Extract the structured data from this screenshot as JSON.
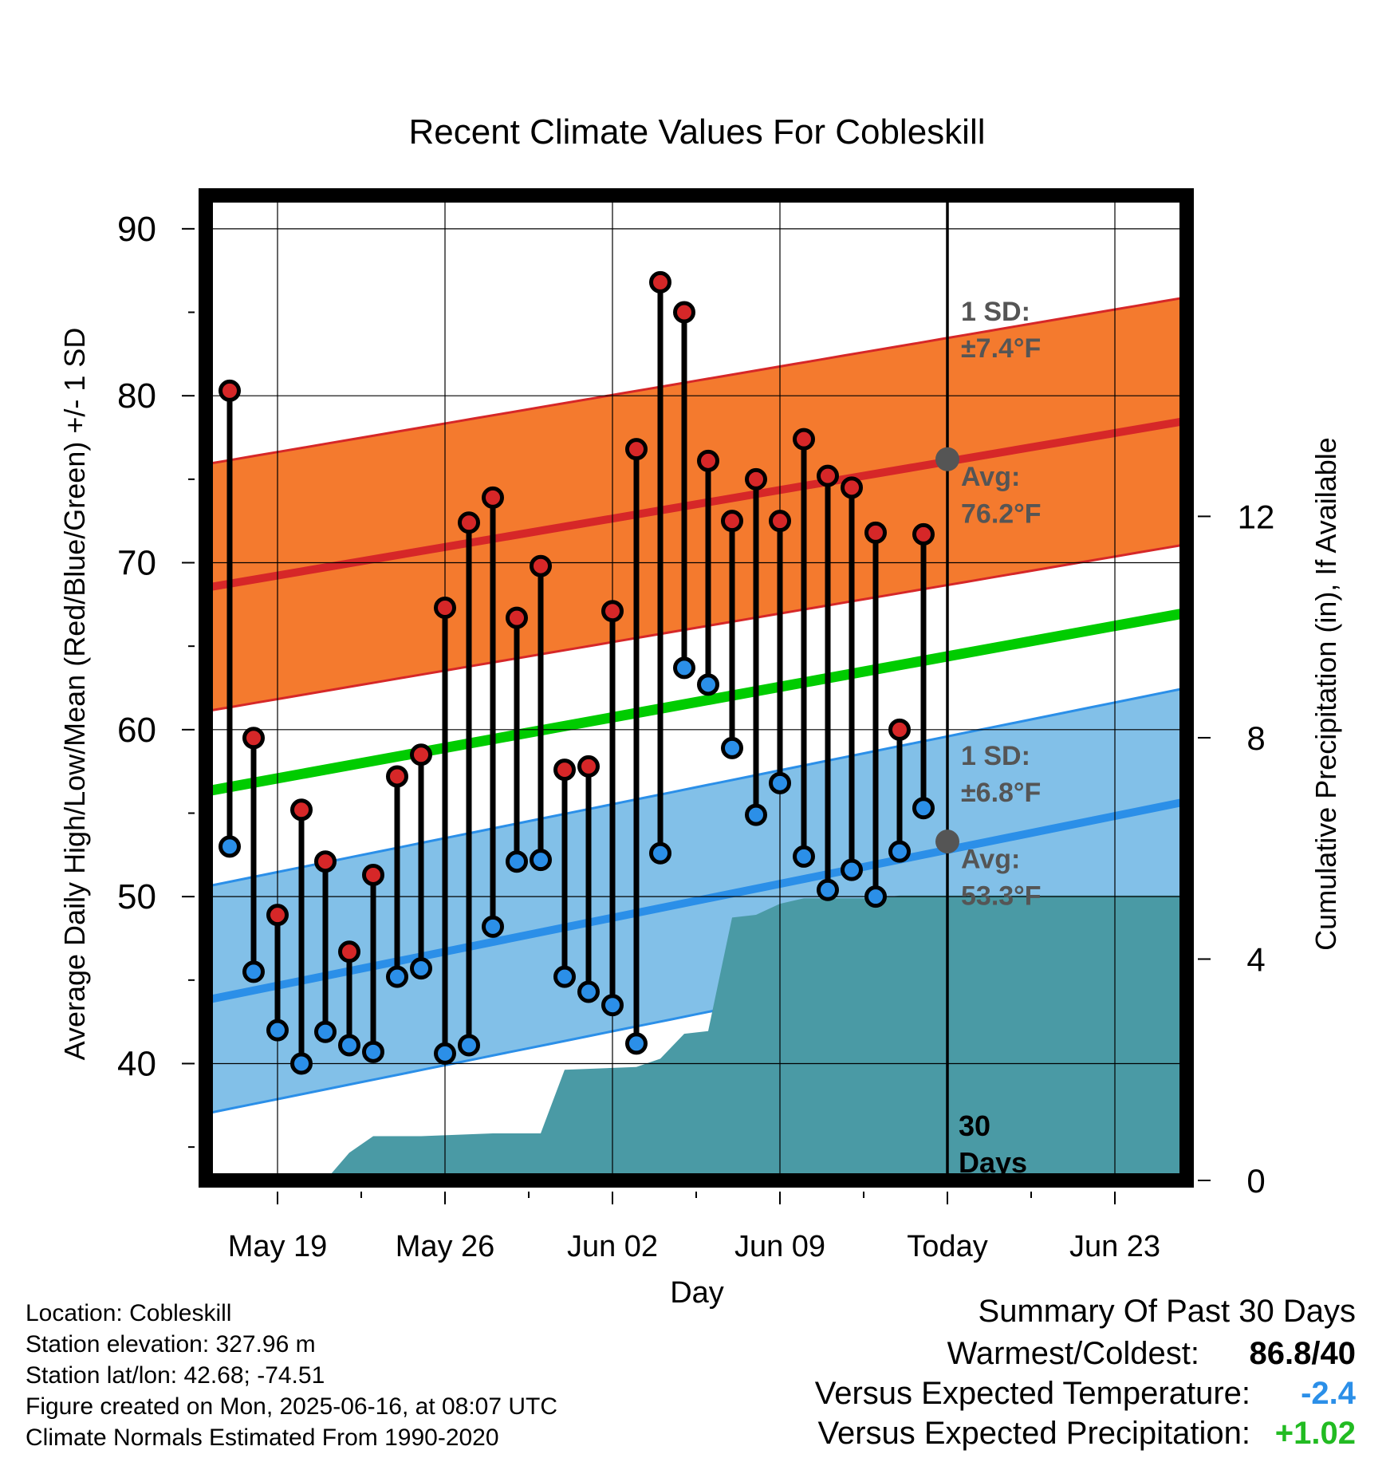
{
  "chart_data": {
    "type": "line",
    "title": "Recent Climate Values For Cobleskill",
    "xlabel": "Day",
    "ylabel": "Average Daily High/Low/Mean (Red/Blue/Green) +/- 1 SD",
    "y2label": "Cumulative Precipitation (in), If Available",
    "x_tick_labels": [
      "May 19",
      "May 26",
      "Jun 02",
      "Jun 09",
      "Today",
      "Jun 23"
    ],
    "x_tick_dates": [
      "2025-05-19",
      "2025-05-26",
      "2025-06-02",
      "2025-06-09",
      "2025-06-16",
      "2025-06-23"
    ],
    "xlim": [
      "2025-05-16",
      "2025-06-26"
    ],
    "today": "2025-06-16",
    "ylim": [
      33,
      92
    ],
    "y_ticks": [
      40,
      50,
      60,
      70,
      80,
      90
    ],
    "y2lim": [
      0,
      17.8
    ],
    "y2_ticks": [
      0,
      4,
      8,
      12
    ],
    "dates": [
      "2025-05-17",
      "2025-05-18",
      "2025-05-19",
      "2025-05-20",
      "2025-05-21",
      "2025-05-22",
      "2025-05-23",
      "2025-05-24",
      "2025-05-25",
      "2025-05-26",
      "2025-05-27",
      "2025-05-28",
      "2025-05-29",
      "2025-05-30",
      "2025-05-31",
      "2025-06-01",
      "2025-06-02",
      "2025-06-03",
      "2025-06-04",
      "2025-06-05",
      "2025-06-06",
      "2025-06-07",
      "2025-06-08",
      "2025-06-09",
      "2025-06-10",
      "2025-06-11",
      "2025-06-12",
      "2025-06-13",
      "2025-06-14",
      "2025-06-15"
    ],
    "series": [
      {
        "name": "High",
        "color": "#d62728",
        "values": [
          80.3,
          59.5,
          48.9,
          55.2,
          52.1,
          46.7,
          51.3,
          57.2,
          58.5,
          67.3,
          72.4,
          73.9,
          66.7,
          69.8,
          57.6,
          57.8,
          67.1,
          76.8,
          86.8,
          85.0,
          76.1,
          72.5,
          75.0,
          72.5,
          77.4,
          75.2,
          74.5,
          71.8,
          60.0,
          71.7
        ]
      },
      {
        "name": "Low",
        "color": "#2b8fe8",
        "values": [
          53.0,
          45.5,
          42.0,
          40.0,
          41.9,
          41.1,
          40.7,
          45.2,
          45.7,
          40.6,
          41.1,
          48.2,
          52.1,
          52.2,
          45.2,
          44.3,
          43.5,
          41.2,
          52.6,
          63.7,
          62.7,
          58.9,
          54.9,
          56.8,
          52.4,
          50.4,
          51.6,
          50.0,
          52.7,
          55.3
        ]
      }
    ],
    "normal_high": {
      "start": 68.5,
      "end": 78.5,
      "sd_label": "1 SD:",
      "sd_value": "±7.4°F",
      "avg_label": "Avg:",
      "avg_value": "76.2°F",
      "today_value": 76.2,
      "color": "#f47a2e",
      "line_color": "#d62728"
    },
    "normal_low": {
      "start": 43.8,
      "end": 55.7,
      "sd_label": "1 SD:",
      "sd_value": "±6.8°F",
      "avg_label": "Avg:",
      "avg_value": "53.3°F",
      "today_value": 53.3,
      "color": "#82c0e8",
      "line_color": "#2b8fe8"
    },
    "normal_mean": {
      "start": 56.3,
      "end": 67.0,
      "color": "#00cc00"
    },
    "precip_cumulative": {
      "color": "#4a9aa5",
      "points": [
        [
          "2025-05-20",
          0.0
        ],
        [
          "2025-05-21",
          0.0
        ],
        [
          "2025-05-22",
          0.5
        ],
        [
          "2025-05-23",
          0.8
        ],
        [
          "2025-05-25",
          0.8
        ],
        [
          "2025-05-28",
          0.85
        ],
        [
          "2025-05-30",
          0.85
        ],
        [
          "2025-05-31",
          2.0
        ],
        [
          "2025-06-03",
          2.05
        ],
        [
          "2025-06-04",
          2.2
        ],
        [
          "2025-06-05",
          2.65
        ],
        [
          "2025-06-06",
          2.7
        ],
        [
          "2025-06-07",
          4.75
        ],
        [
          "2025-06-08",
          4.8
        ],
        [
          "2025-06-09",
          5.0
        ],
        [
          "2025-06-10",
          5.1
        ],
        [
          "2025-06-13",
          5.1
        ],
        [
          "2025-06-14",
          5.15
        ],
        [
          "2025-06-26",
          5.15
        ]
      ]
    },
    "today_label_line1": "30",
    "today_label_line2": "Days"
  },
  "footer": {
    "location": "Location: Cobleskill",
    "elevation": "Station elevation: 327.96 m",
    "latlon": "Station lat/lon: 42.68; -74.51",
    "created": "Figure created on Mon, 2025-06-16, at 08:07 UTC",
    "normals": "Climate Normals Estimated From 1990-2020"
  },
  "summary": {
    "title": "Summary Of Past 30 Days",
    "warm_cold_label": "Warmest/Coldest:",
    "warm_value": "86.8",
    "cold_value": "/40",
    "temp_label": "Versus Expected Temperature:",
    "temp_value": "-2.4",
    "temp_color": "#2b8fe8",
    "precip_label": "Versus Expected Precipitation:",
    "precip_value": "+1.02",
    "precip_color": "#22bb22"
  }
}
